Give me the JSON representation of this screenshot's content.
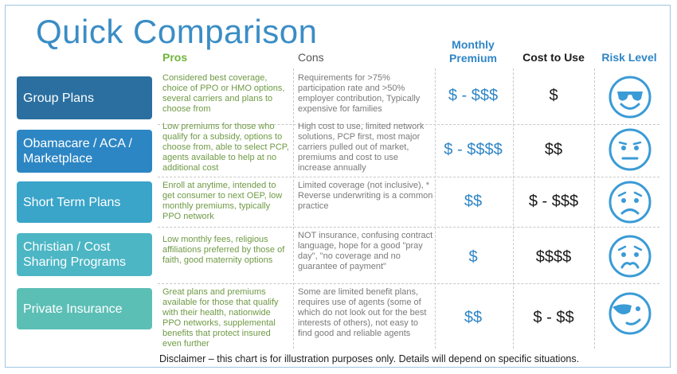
{
  "title": "Quick Comparison",
  "headers": {
    "pros": "Pros",
    "cons": "Cons",
    "monthly_premium": "Monthly Premium",
    "cost_to_use": "Cost to Use",
    "risk_level": "Risk Level"
  },
  "rows": [
    {
      "plan": "Group Plans",
      "color": "#2a6fa0",
      "pros": "Considered best coverage, choice of PPO or HMO options, several carriers and plans to choose from",
      "cons": "Requirements for >75% participation rate and >50% employer contribution, Typically expensive for families",
      "premium": "$ - $$$",
      "cost": "$",
      "risk_icon": "cool-sunglasses-face-icon"
    },
    {
      "plan": "Obamacare / ACA / Marketplace",
      "color": "#2d86c4",
      "pros": "Low premiums for those who qualify for a subsidy, options to choose from, able to select PCP, agents available to help at no additional cost",
      "cons": "High cost to use, limited network solutions, PCP first, most major carriers pulled out of market, premiums and cost to use increase annually",
      "premium": "$ - $$$$",
      "cost": "$$",
      "risk_icon": "neutral-face-icon"
    },
    {
      "plan": "Short Term Plans",
      "color": "#3aa4c9",
      "pros": "Enroll at anytime, intended to get consumer to next OEP, low monthly premiums, typically PPO network",
      "cons": "Limited coverage (not inclusive), * Reverse underwriting is a common practice",
      "premium": "$$",
      "cost": "$ - $$$",
      "risk_icon": "sad-face-icon"
    },
    {
      "plan": "Christian / Cost Sharing Programs",
      "color": "#4cb6c4",
      "pros": "Low monthly fees, religious affiliations preferred by those of faith, good maternity options",
      "cons": "NOT insurance, confusing contract language, hope for a good \"pray day\", \"no coverage and no guarantee of payment\"",
      "premium": "$",
      "cost": "$$$$",
      "risk_icon": "worried-face-icon"
    },
    {
      "plan": "Private Insurance",
      "color": "#5cbfb6",
      "pros": "Great plans and premiums available for those that qualify with their health, nationwide PPO networks, supplemental benefits that protect insured even further",
      "cons": "Some are limited benefit plans, requires use of agents (some of which do not look out for the best interests of others), not easy to find good and reliable agents",
      "premium": "$$",
      "cost": "$ - $$",
      "risk_icon": "winking-sunglasses-face-icon"
    }
  ],
  "disclaimer": "Disclaimer – this chart is for illustration purposes only. Details will depend on specific situations.",
  "colors": {
    "title": "#3a8dc5",
    "pros_text": "#6f9a45",
    "accent_blue": "#2f86c6"
  }
}
